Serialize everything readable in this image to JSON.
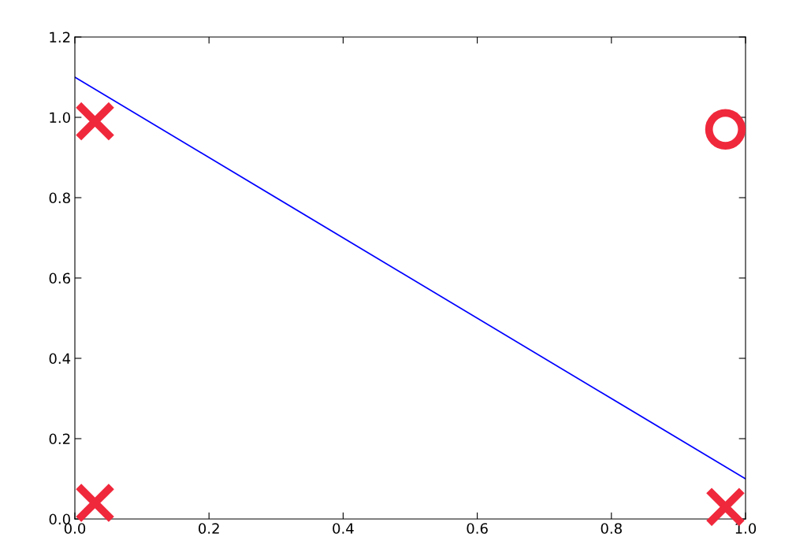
{
  "chart_data": {
    "type": "line",
    "series": [
      {
        "color": "#0000ff",
        "x": [
          0.0,
          1.0
        ],
        "values": [
          1.1,
          0.1
        ],
        "marker": "none"
      },
      {
        "type": "scatter",
        "color": "#f0283c",
        "x": [
          0.03,
          0.03,
          0.97
        ],
        "values": [
          0.99,
          0.04,
          0.03
        ],
        "marker": "cross"
      },
      {
        "type": "scatter",
        "color": "#f0283c",
        "x": [
          0.97
        ],
        "values": [
          0.97
        ],
        "marker": "circle"
      }
    ],
    "xlim": [
      0,
      1
    ],
    "ylim": [
      0,
      1.2
    ],
    "xticks": [
      {
        "value": 0,
        "label": "0.0"
      },
      {
        "value": 0.2,
        "label": "0.2"
      },
      {
        "value": 0.4,
        "label": "0.4"
      },
      {
        "value": 0.6,
        "label": "0.6"
      },
      {
        "value": 0.8,
        "label": "0.8"
      },
      {
        "value": 1.0,
        "label": "1.0"
      }
    ],
    "yticks": [
      {
        "value": 0,
        "label": "0.0"
      },
      {
        "value": 0.2,
        "label": "0.2"
      },
      {
        "value": 0.4,
        "label": "0.4"
      },
      {
        "value": 0.6,
        "label": "0.6"
      },
      {
        "value": 0.8,
        "label": "0.8"
      },
      {
        "value": 1.0,
        "label": "1.0"
      },
      {
        "value": 1.2,
        "label": "1.2"
      }
    ],
    "grid": false,
    "legend": false
  }
}
